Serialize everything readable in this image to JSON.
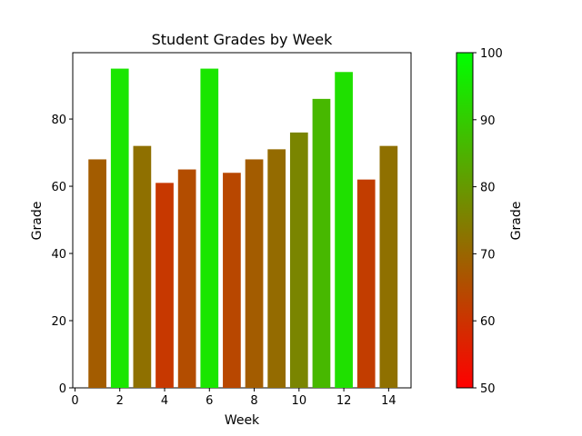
{
  "chart_data": {
    "type": "bar",
    "title": "Student Grades by Week",
    "xlabel": "Week",
    "ylabel": "Grade",
    "x": [
      1,
      2,
      3,
      4,
      5,
      6,
      7,
      8,
      9,
      10,
      11,
      12,
      13,
      14
    ],
    "values": [
      68,
      95,
      72,
      61,
      65,
      95,
      64,
      68,
      71,
      76,
      86,
      94,
      62,
      72
    ],
    "xlim": [
      -0.1,
      15.0
    ],
    "ylim": [
      0,
      99.75
    ],
    "xticks": [
      0,
      2,
      4,
      6,
      8,
      10,
      12,
      14
    ],
    "yticks": [
      0,
      20,
      40,
      60,
      80
    ],
    "grid": false,
    "colorbar": {
      "label": "Grade",
      "range": [
        50,
        100
      ],
      "ticks": [
        50,
        60,
        70,
        80,
        90,
        100
      ],
      "low_color": "#ff0000",
      "high_color": "#00ff00"
    }
  }
}
